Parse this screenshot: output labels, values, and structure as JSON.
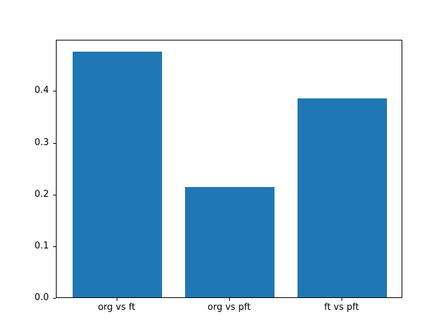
{
  "chart_data": {
    "type": "bar",
    "categories": [
      "org vs ft",
      "org vs pft",
      "ft vs pft"
    ],
    "values": [
      0.475,
      0.213,
      0.384
    ],
    "title": "",
    "xlabel": "",
    "ylabel": "",
    "ylim": [
      0,
      0.499
    ],
    "yticks": [
      0.0,
      0.1,
      0.2,
      0.3,
      0.4
    ],
    "ytick_labels": [
      "0.0",
      "0.1",
      "0.2",
      "0.3",
      "0.4"
    ],
    "bar_color": "#1f77b4",
    "axis_color": "#000000",
    "background_color": "#ffffff",
    "grid": false,
    "legend": null
  }
}
